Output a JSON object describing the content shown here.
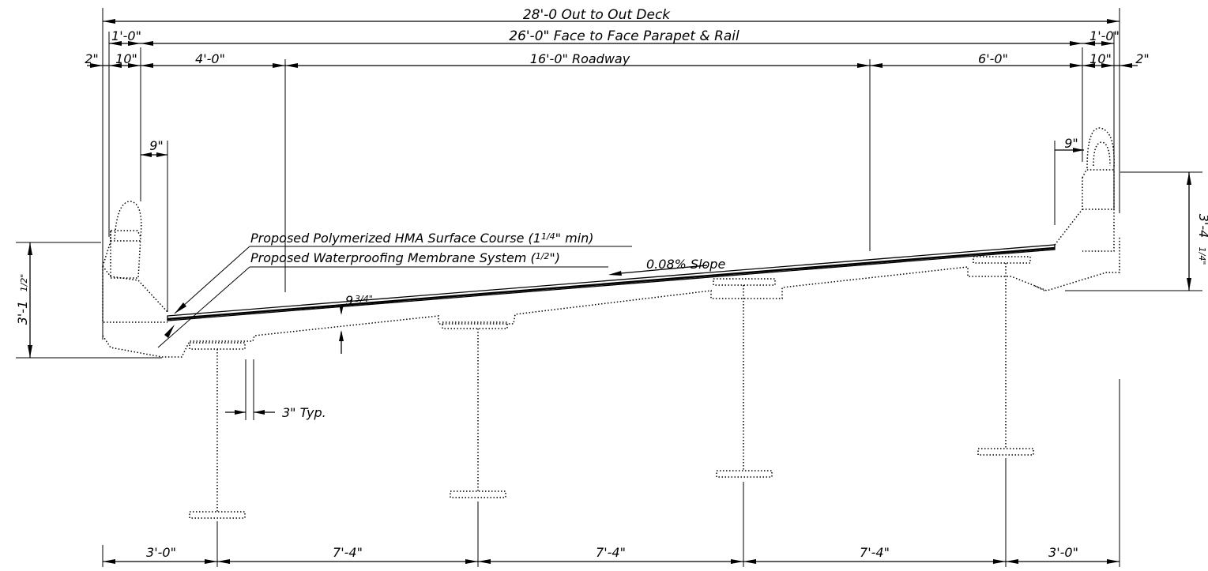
{
  "dims": {
    "out_to_out": "28'-0 Out to Out Deck",
    "face_to_face": "26'-0\" Face to Face Parapet & Rail",
    "left_1ft": "1'-0\"",
    "right_1ft": "1'-0\"",
    "left_2in": "2\"",
    "left_10in": "10\"",
    "left_4ft": "4'-0\"",
    "roadway": "16'-0\" Roadway",
    "right_6ft": "6'-0\"",
    "right_10in": "10\"",
    "right_2in": "2\"",
    "left_9in": "9\"",
    "right_9in": "9\"",
    "left_height_main": "3'-1",
    "left_height_frac": "1/2\"",
    "right_height_main": "3'-4",
    "right_height_frac": "1/4\"",
    "slab_main": "9",
    "slab_frac": "3/4\"",
    "flange_offset": "3\" Typ.",
    "spacing": [
      "3'-0\"",
      "7'-4\"",
      "7'-4\"",
      "7'-4\"",
      "3'-0\""
    ]
  },
  "notes": {
    "surface_course": "Proposed Polymerized HMA Surface Course (1",
    "surface_frac": "1/4",
    "surface_end": "\" min)",
    "membrane": "Proposed Waterproofing Membrane System (",
    "membrane_frac": "1/2",
    "membrane_end": "\")",
    "slope": "0.08% Slope"
  }
}
